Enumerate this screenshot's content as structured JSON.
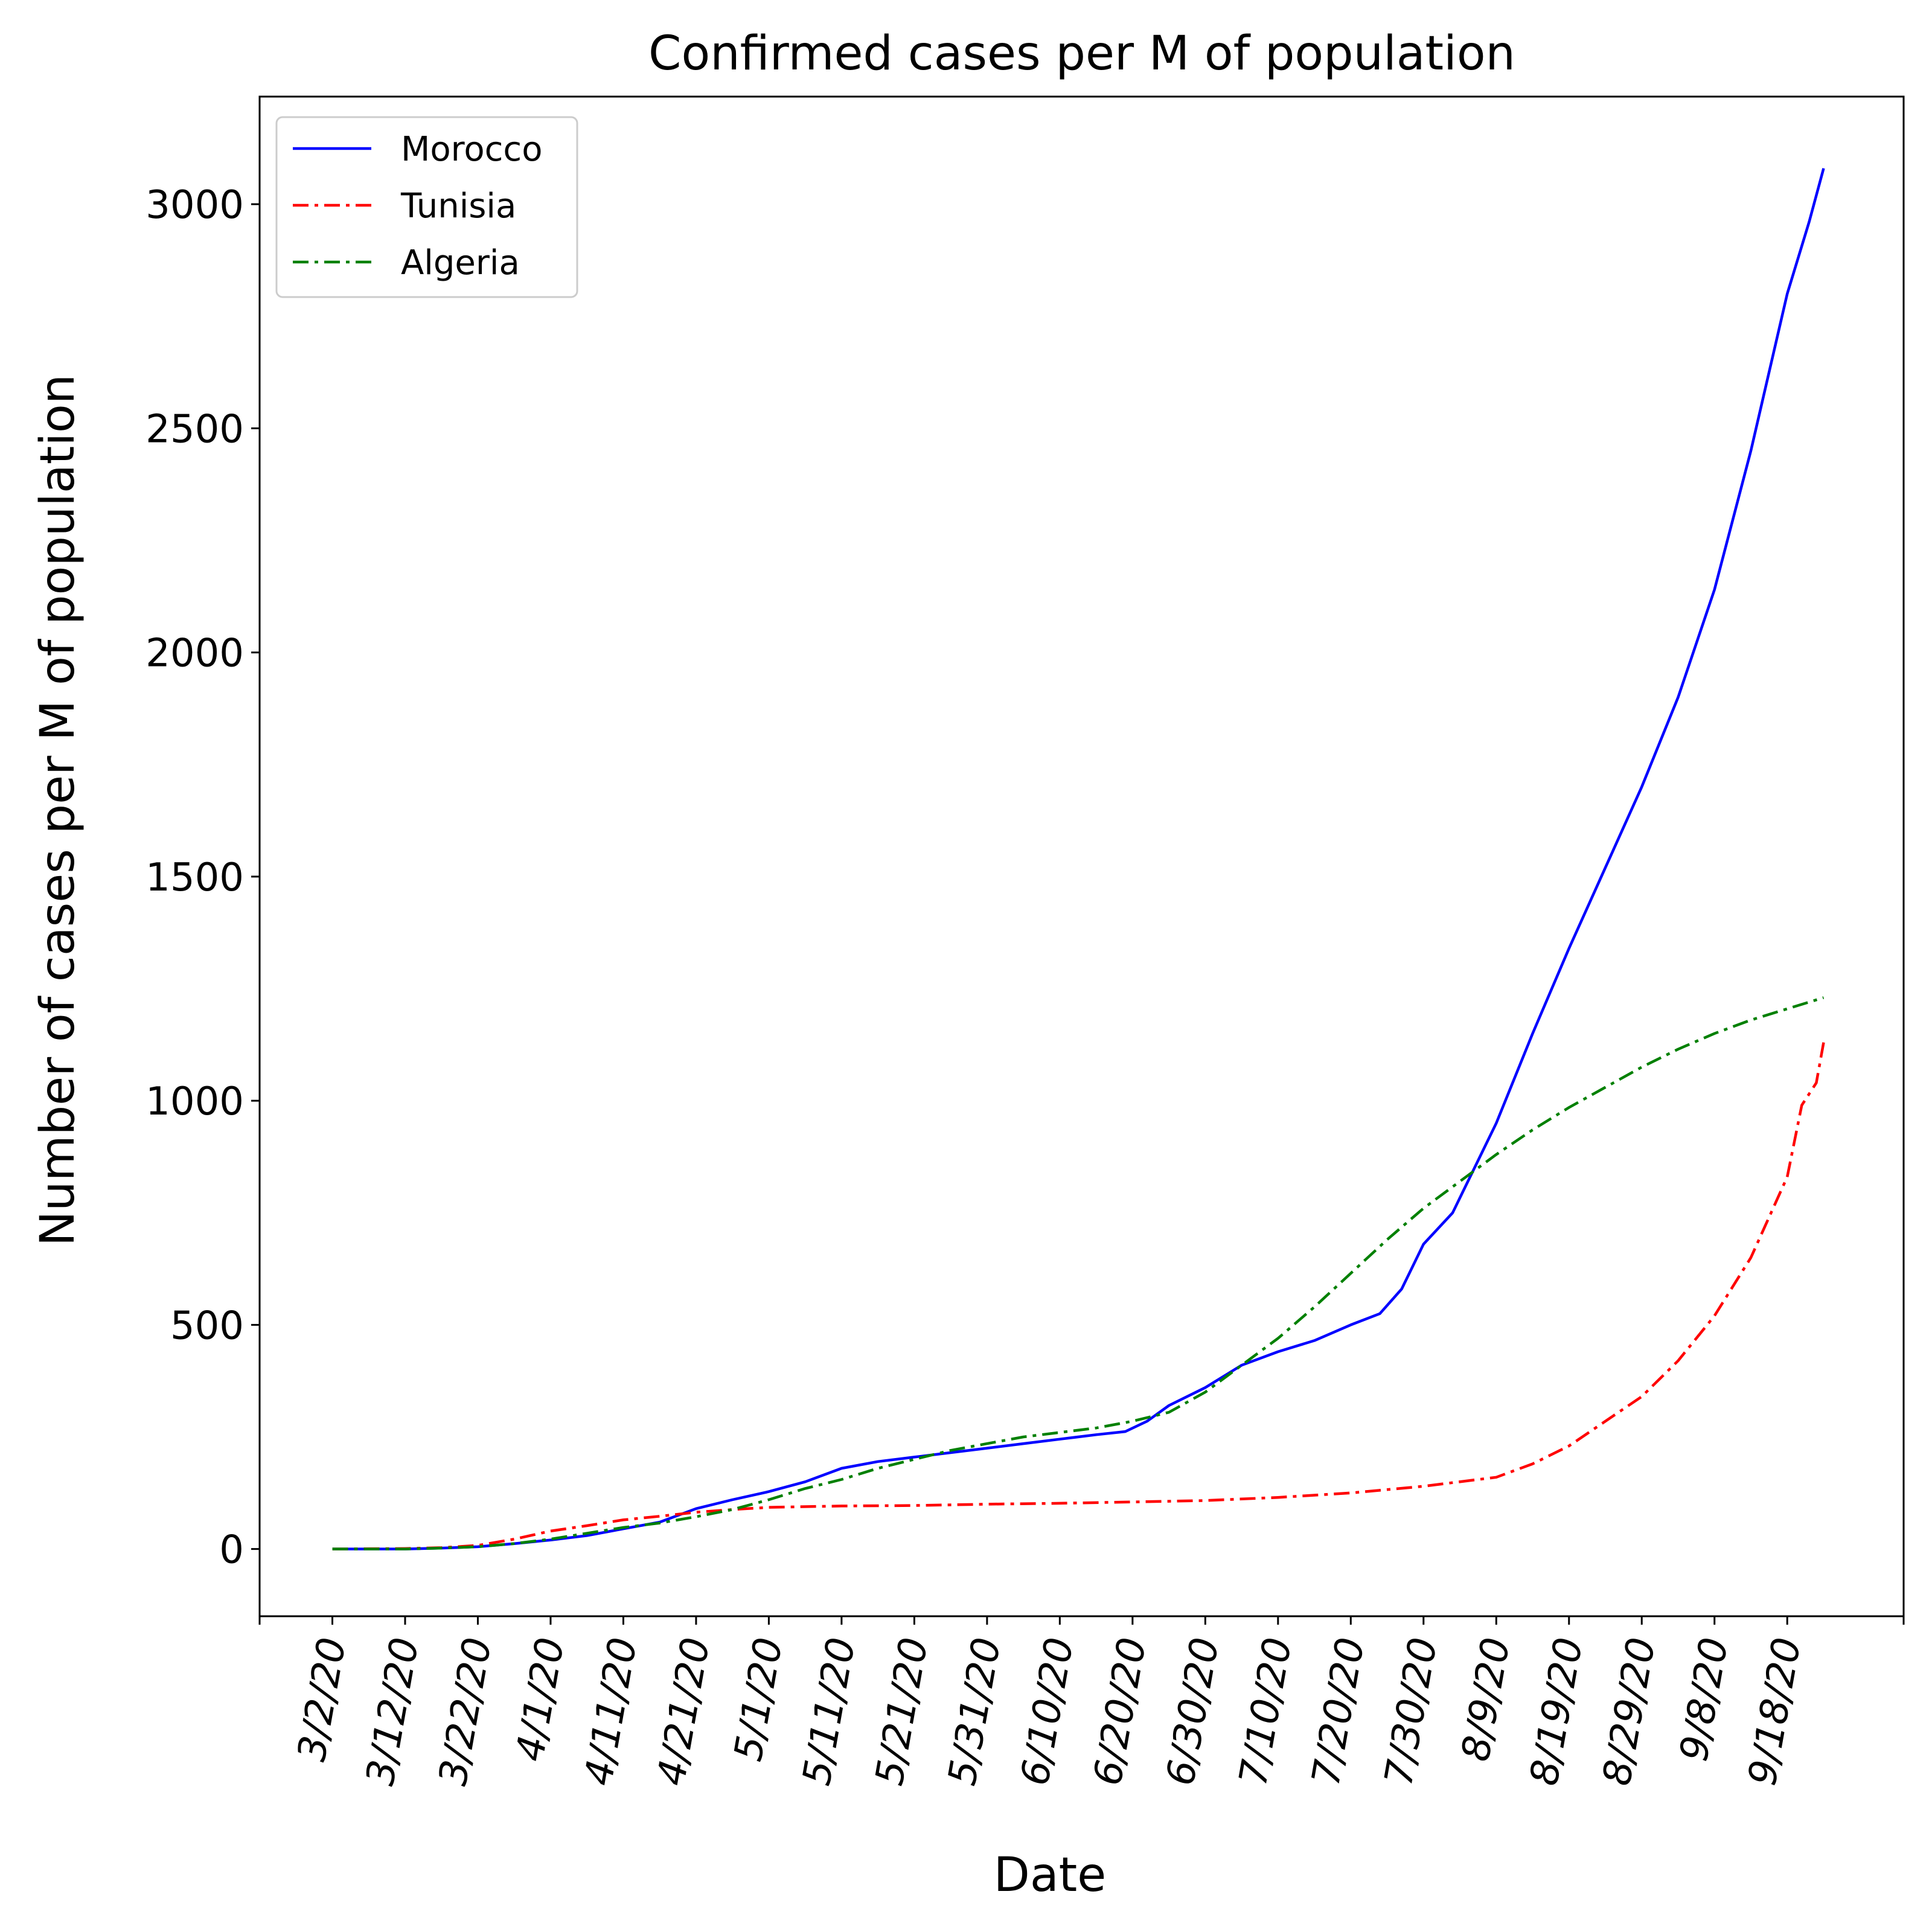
{
  "chart_data": {
    "type": "line",
    "title": "Confirmed cases per M of population",
    "xlabel": "Date",
    "ylabel": "Number of cases per M of population",
    "x_axis_type": "date",
    "x_start": "3/2/20",
    "x_end": "9/23/20",
    "xlim": [
      "2/21/20",
      "10/4/20"
    ],
    "ylim": [
      -150,
      3240
    ],
    "x_ticks": [
      "3/2/20",
      "3/12/20",
      "3/22/20",
      "4/1/20",
      "4/11/20",
      "4/21/20",
      "5/1/20",
      "5/11/20",
      "5/21/20",
      "5/31/20",
      "6/10/20",
      "6/20/20",
      "6/30/20",
      "7/10/20",
      "7/20/20",
      "7/30/20",
      "8/9/20",
      "8/19/20",
      "8/29/20",
      "9/8/20",
      "9/18/20"
    ],
    "y_ticks": [
      0,
      500,
      1000,
      1500,
      2000,
      2500,
      3000
    ],
    "grid": false,
    "legend_position": "top-left",
    "series": [
      {
        "name": "Morocco",
        "color": "#0000ff",
        "linestyle": "solid",
        "points": [
          [
            "3/2/20",
            0
          ],
          [
            "3/12/20",
            0
          ],
          [
            "3/17/20",
            2
          ],
          [
            "3/22/20",
            5
          ],
          [
            "3/27/20",
            12
          ],
          [
            "4/1/20",
            20
          ],
          [
            "4/6/20",
            30
          ],
          [
            "4/11/20",
            45
          ],
          [
            "4/16/20",
            60
          ],
          [
            "4/21/20",
            90
          ],
          [
            "4/26/20",
            110
          ],
          [
            "5/1/20",
            128
          ],
          [
            "5/6/20",
            150
          ],
          [
            "5/11/20",
            180
          ],
          [
            "5/16/20",
            195
          ],
          [
            "5/21/20",
            205
          ],
          [
            "5/26/20",
            215
          ],
          [
            "5/31/20",
            225
          ],
          [
            "6/5/20",
            235
          ],
          [
            "6/10/20",
            245
          ],
          [
            "6/15/20",
            255
          ],
          [
            "6/19/20",
            262
          ],
          [
            "6/22/20",
            285
          ],
          [
            "6/25/20",
            320
          ],
          [
            "6/30/20",
            360
          ],
          [
            "7/5/20",
            410
          ],
          [
            "7/10/20",
            440
          ],
          [
            "7/15/20",
            465
          ],
          [
            "7/20/20",
            500
          ],
          [
            "7/24/20",
            525
          ],
          [
            "7/27/20",
            580
          ],
          [
            "7/30/20",
            680
          ],
          [
            "8/3/20",
            750
          ],
          [
            "8/9/20",
            950
          ],
          [
            "8/14/20",
            1150
          ],
          [
            "8/19/20",
            1340
          ],
          [
            "8/24/20",
            1520
          ],
          [
            "8/29/20",
            1700
          ],
          [
            "9/3/20",
            1900
          ],
          [
            "9/8/20",
            2140
          ],
          [
            "9/13/20",
            2450
          ],
          [
            "9/18/20",
            2800
          ],
          [
            "9/21/20",
            2960
          ],
          [
            "9/23/20",
            3080
          ]
        ]
      },
      {
        "name": "Tunisia",
        "color": "#ff0000",
        "linestyle": "dashdot",
        "points": [
          [
            "3/2/20",
            0
          ],
          [
            "3/12/20",
            1
          ],
          [
            "3/17/20",
            3
          ],
          [
            "3/22/20",
            8
          ],
          [
            "3/27/20",
            22
          ],
          [
            "4/1/20",
            40
          ],
          [
            "4/6/20",
            52
          ],
          [
            "4/11/20",
            65
          ],
          [
            "4/16/20",
            73
          ],
          [
            "4/21/20",
            82
          ],
          [
            "4/26/20",
            88
          ],
          [
            "5/1/20",
            93
          ],
          [
            "5/11/20",
            96
          ],
          [
            "5/21/20",
            97
          ],
          [
            "5/31/20",
            100
          ],
          [
            "6/10/20",
            102
          ],
          [
            "6/20/20",
            105
          ],
          [
            "6/30/20",
            108
          ],
          [
            "7/10/20",
            115
          ],
          [
            "7/20/20",
            125
          ],
          [
            "7/30/20",
            140
          ],
          [
            "8/9/20",
            160
          ],
          [
            "8/14/20",
            190
          ],
          [
            "8/19/20",
            230
          ],
          [
            "8/24/20",
            285
          ],
          [
            "8/29/20",
            340
          ],
          [
            "9/3/20",
            420
          ],
          [
            "9/8/20",
            520
          ],
          [
            "9/13/20",
            650
          ],
          [
            "9/18/20",
            830
          ],
          [
            "9/20/20",
            990
          ],
          [
            "9/22/20",
            1040
          ],
          [
            "9/23/20",
            1130
          ]
        ]
      },
      {
        "name": "Algeria",
        "color": "#008000",
        "linestyle": "dashdot",
        "points": [
          [
            "3/2/20",
            0
          ],
          [
            "3/12/20",
            0
          ],
          [
            "3/17/20",
            2
          ],
          [
            "3/22/20",
            5
          ],
          [
            "3/27/20",
            12
          ],
          [
            "4/1/20",
            22
          ],
          [
            "4/6/20",
            35
          ],
          [
            "4/11/20",
            48
          ],
          [
            "4/16/20",
            58
          ],
          [
            "4/21/20",
            72
          ],
          [
            "4/26/20",
            88
          ],
          [
            "5/1/20",
            110
          ],
          [
            "5/6/20",
            135
          ],
          [
            "5/11/20",
            155
          ],
          [
            "5/16/20",
            180
          ],
          [
            "5/21/20",
            200
          ],
          [
            "5/26/20",
            220
          ],
          [
            "5/31/20",
            235
          ],
          [
            "6/5/20",
            250
          ],
          [
            "6/10/20",
            260
          ],
          [
            "6/15/20",
            270
          ],
          [
            "6/20/20",
            285
          ],
          [
            "6/25/20",
            305
          ],
          [
            "6/30/20",
            350
          ],
          [
            "7/5/20",
            410
          ],
          [
            "7/10/20",
            470
          ],
          [
            "7/15/20",
            540
          ],
          [
            "7/20/20",
            615
          ],
          [
            "7/25/20",
            690
          ],
          [
            "7/30/20",
            760
          ],
          [
            "8/4/20",
            820
          ],
          [
            "8/9/20",
            880
          ],
          [
            "8/14/20",
            935
          ],
          [
            "8/19/20",
            985
          ],
          [
            "8/24/20",
            1030
          ],
          [
            "8/29/20",
            1075
          ],
          [
            "9/3/20",
            1115
          ],
          [
            "9/8/20",
            1150
          ],
          [
            "9/13/20",
            1180
          ],
          [
            "9/18/20",
            1205
          ],
          [
            "9/23/20",
            1230
          ]
        ]
      }
    ]
  }
}
